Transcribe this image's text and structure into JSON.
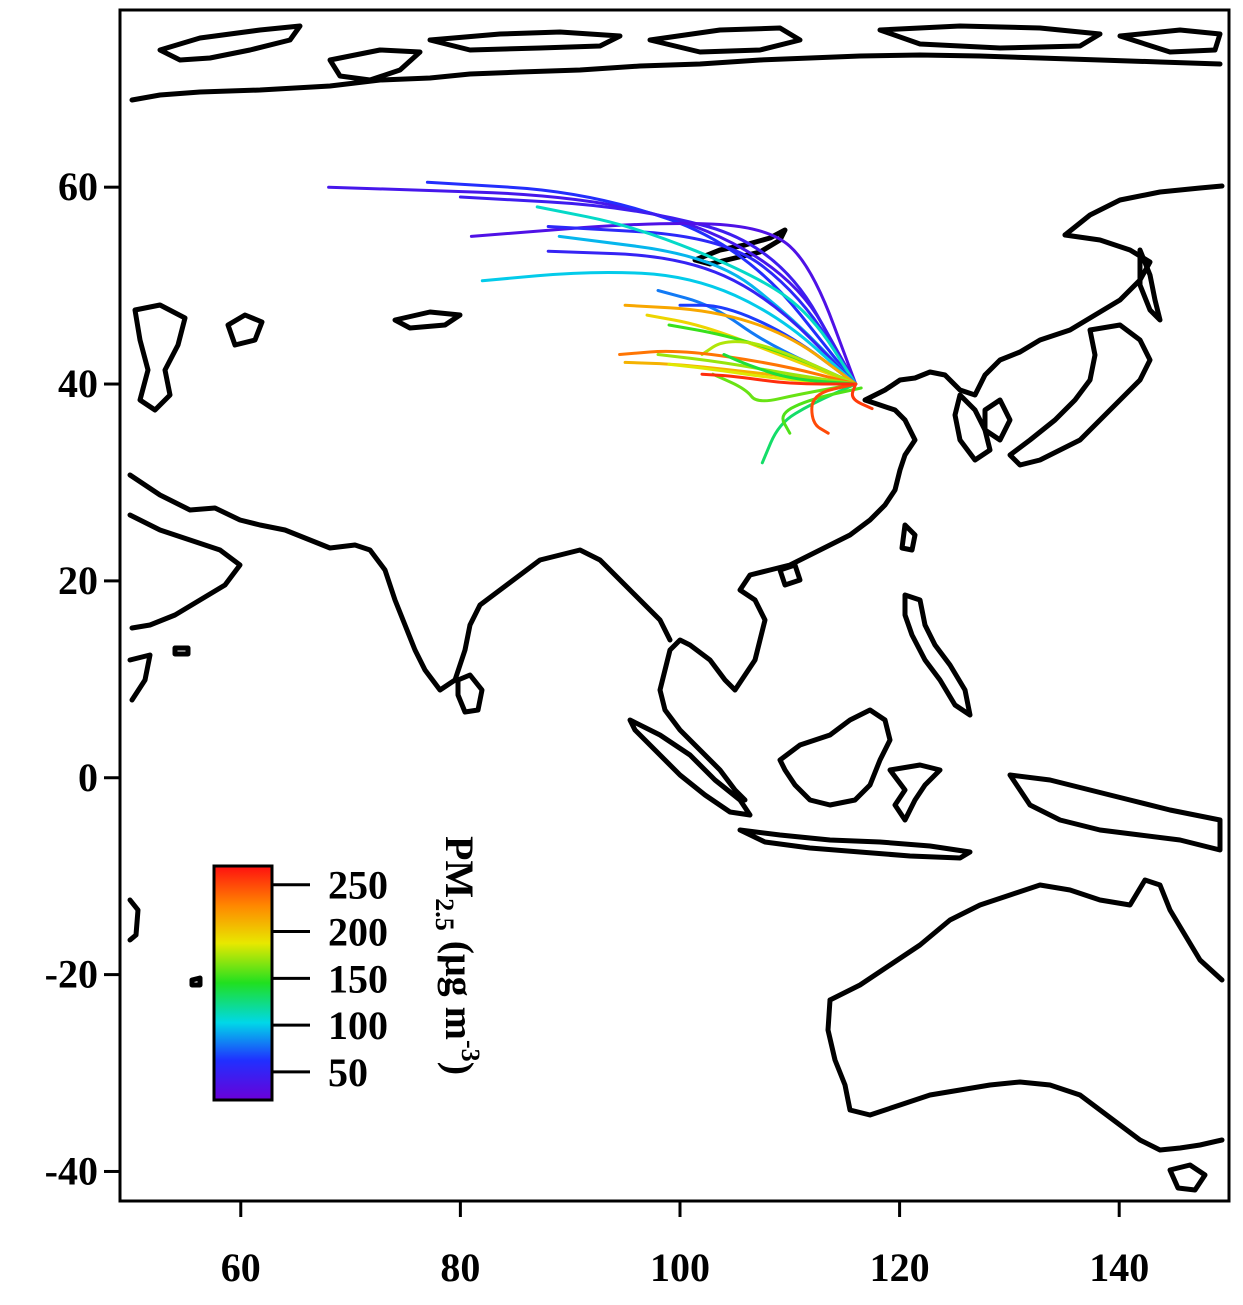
{
  "map": {
    "x_axis": {
      "ticks": [
        60,
        80,
        100,
        120,
        140
      ],
      "range": [
        49,
        150
      ]
    },
    "y_axis": {
      "ticks": [
        60,
        40,
        20,
        0,
        -20,
        -40
      ],
      "range": [
        -43,
        78
      ]
    }
  },
  "colorbar": {
    "title_main": "PM",
    "title_sub": "2.5",
    "title_unit": " (μg m",
    "title_sup": "-3",
    "title_close": ")",
    "ticks": [
      {
        "label": "250",
        "value": 250
      },
      {
        "label": "200",
        "value": 200
      },
      {
        "label": "150",
        "value": 150
      },
      {
        "label": "100",
        "value": 100
      },
      {
        "label": "50",
        "value": 50
      }
    ],
    "range": [
      20,
      270
    ],
    "colors": [
      "#6a00d8",
      "#2030ff",
      "#00d8e8",
      "#20e020",
      "#e8e800",
      "#ff8800",
      "#ff1010"
    ]
  },
  "trajectories": [
    {
      "pm": 40,
      "points": [
        [
          116,
          40
        ],
        [
          110,
          52
        ],
        [
          95,
          59
        ],
        [
          68,
          60
        ]
      ]
    },
    {
      "pm": 60,
      "points": [
        [
          116,
          40
        ],
        [
          106,
          54
        ],
        [
          92,
          59.5
        ],
        [
          77,
          60.5
        ]
      ]
    },
    {
      "pm": 45,
      "points": [
        [
          116,
          40
        ],
        [
          109,
          54
        ],
        [
          96,
          58
        ],
        [
          80,
          59
        ]
      ]
    },
    {
      "pm": 35,
      "points": [
        [
          116,
          40
        ],
        [
          112,
          52
        ],
        [
          108,
          56
        ],
        [
          98,
          56.5
        ],
        [
          81,
          55
        ]
      ]
    },
    {
      "pm": 55,
      "points": [
        [
          116,
          40
        ],
        [
          111,
          49
        ],
        [
          104,
          55
        ],
        [
          88,
          56
        ]
      ]
    },
    {
      "pm": 110,
      "points": [
        [
          116,
          40
        ],
        [
          112,
          47
        ],
        [
          107,
          51
        ],
        [
          96,
          56
        ],
        [
          87,
          58
        ]
      ]
    },
    {
      "pm": 95,
      "points": [
        [
          116,
          40
        ],
        [
          110,
          47
        ],
        [
          103,
          53
        ],
        [
          89,
          55
        ]
      ]
    },
    {
      "pm": 50,
      "points": [
        [
          116,
          40
        ],
        [
          108,
          49
        ],
        [
          100,
          53
        ],
        [
          88,
          53.5
        ]
      ]
    },
    {
      "pm": 100,
      "points": [
        [
          116,
          40
        ],
        [
          109,
          47
        ],
        [
          101,
          51
        ],
        [
          92,
          51.5
        ],
        [
          82,
          50.5
        ]
      ]
    },
    {
      "pm": 80,
      "points": [
        [
          116,
          40
        ],
        [
          108,
          44
        ],
        [
          103,
          48
        ],
        [
          98,
          49.5
        ]
      ]
    },
    {
      "pm": 65,
      "points": [
        [
          116,
          40
        ],
        [
          110,
          45
        ],
        [
          104,
          48
        ],
        [
          100,
          48
        ]
      ]
    },
    {
      "pm": 215,
      "points": [
        [
          116,
          40
        ],
        [
          110,
          45
        ],
        [
          103,
          47.5
        ],
        [
          95,
          48
        ]
      ]
    },
    {
      "pm": 195,
      "points": [
        [
          116,
          40
        ],
        [
          109,
          43
        ],
        [
          102,
          46
        ],
        [
          97,
          47
        ]
      ]
    },
    {
      "pm": 150,
      "points": [
        [
          116,
          40
        ],
        [
          110,
          43
        ],
        [
          104,
          45
        ],
        [
          99,
          46
        ]
      ]
    },
    {
      "pm": 175,
      "points": [
        [
          116,
          40
        ],
        [
          108,
          44
        ],
        [
          104,
          44.5
        ],
        [
          102,
          43
        ]
      ]
    },
    {
      "pm": 235,
      "points": [
        [
          116,
          40
        ],
        [
          109,
          42
        ],
        [
          100,
          43.5
        ],
        [
          94.5,
          43
        ]
      ]
    },
    {
      "pm": 210,
      "points": [
        [
          116,
          40
        ],
        [
          108,
          41
        ],
        [
          100,
          42
        ],
        [
          95,
          42.2
        ]
      ]
    },
    {
      "pm": 170,
      "points": [
        [
          116,
          40
        ],
        [
          110,
          41
        ],
        [
          104,
          42.2
        ],
        [
          98,
          43
        ]
      ]
    },
    {
      "pm": 185,
      "points": [
        [
          116,
          40
        ],
        [
          109,
          40.5
        ],
        [
          103,
          41.5
        ],
        [
          99,
          42
        ]
      ]
    },
    {
      "pm": 140,
      "points": [
        [
          116,
          40
        ],
        [
          110,
          40.5
        ],
        [
          106,
          42
        ],
        [
          104,
          43
        ]
      ]
    },
    {
      "pm": 160,
      "points": [
        [
          116,
          40
        ],
        [
          111,
          39
        ],
        [
          107,
          38
        ],
        [
          106,
          39.5
        ],
        [
          103,
          41
        ]
      ]
    },
    {
      "pm": 130,
      "points": [
        [
          116,
          40
        ],
        [
          112,
          38
        ],
        [
          109,
          36
        ],
        [
          107.5,
          32
        ]
      ]
    },
    {
      "pm": 155,
      "points": [
        [
          116.5,
          39.6
        ],
        [
          112,
          38.5
        ],
        [
          109,
          37
        ],
        [
          110,
          35
        ]
      ]
    },
    {
      "pm": 250,
      "points": [
        [
          116,
          40
        ],
        [
          112,
          39
        ],
        [
          112,
          36
        ],
        [
          113.5,
          35
        ]
      ]
    },
    {
      "pm": 260,
      "points": [
        [
          116,
          40
        ],
        [
          110,
          40
        ],
        [
          105,
          40.8
        ],
        [
          102,
          41
        ]
      ]
    },
    {
      "pm": 255,
      "points": [
        [
          116,
          40
        ],
        [
          115.5,
          38.5
        ],
        [
          117.5,
          37.5
        ]
      ]
    }
  ]
}
